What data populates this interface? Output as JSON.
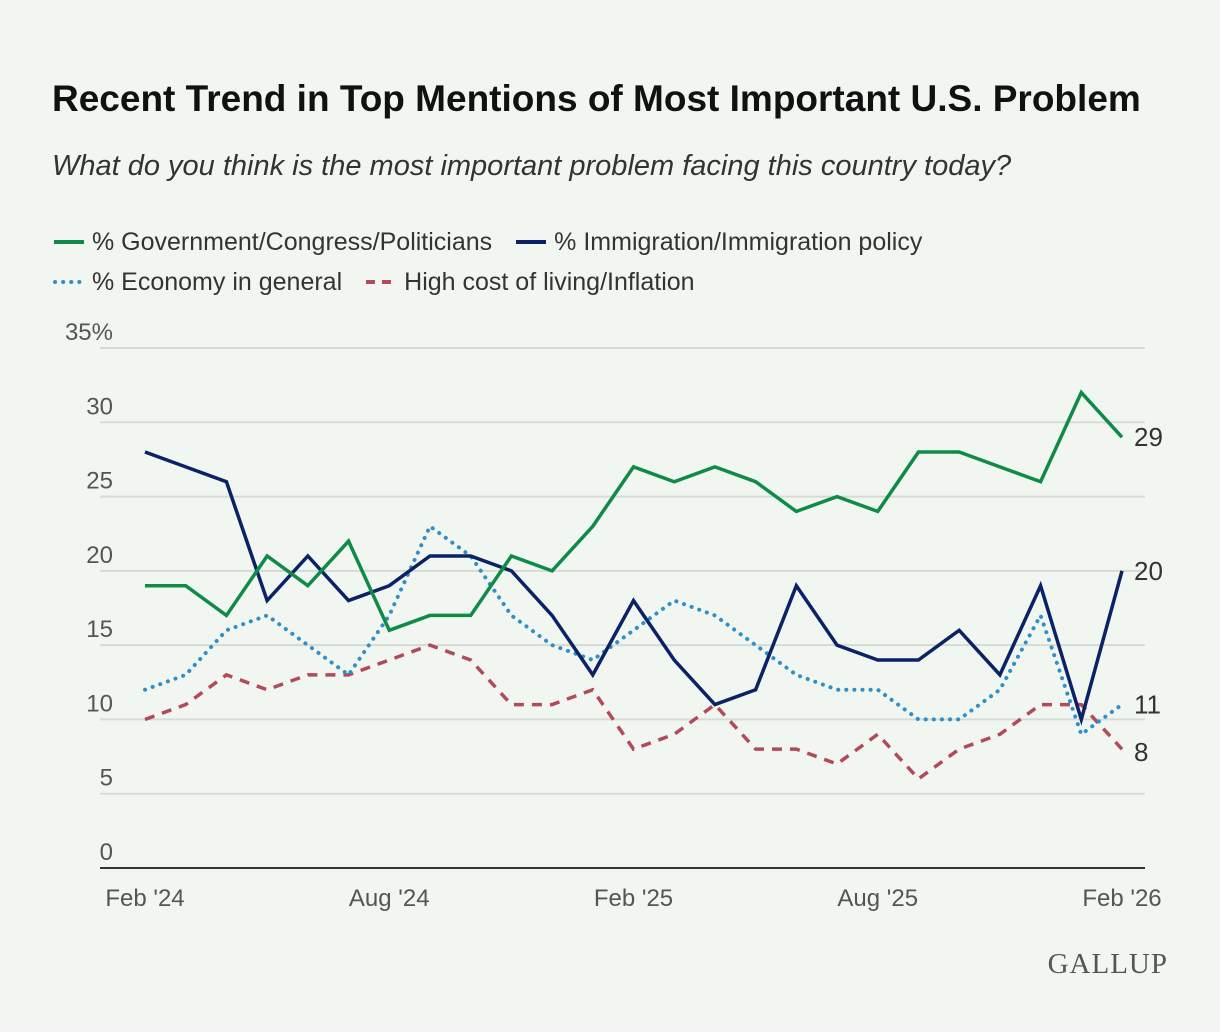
{
  "chart_data": {
    "type": "line",
    "title": "Recent Trend in Top Mentions of Most Important U.S. Problem",
    "subtitle": "What do you think is the most important problem facing this country today?",
    "xlabel": "",
    "ylabel": "",
    "ylim": [
      0,
      35
    ],
    "yticks": [
      0,
      5,
      10,
      15,
      20,
      25,
      30,
      35
    ],
    "ytick_labels": [
      "0",
      "5",
      "10",
      "15",
      "20",
      "25",
      "30",
      "35%"
    ],
    "x_tick_labels": [
      "Feb '24",
      "Aug '24",
      "Feb '25",
      "Aug '25",
      "Feb '26"
    ],
    "x_tick_indices": [
      0,
      6,
      12,
      18,
      24
    ],
    "grid": true,
    "legend_placement": "top",
    "series": [
      {
        "name": "% Government/Congress/Politicians",
        "color": "#0f8a47",
        "style": "solid",
        "end_label": "29",
        "values": [
          19,
          19,
          17,
          21,
          19,
          22,
          16,
          17,
          17,
          21,
          20,
          23,
          27,
          26,
          27,
          26,
          24,
          25,
          24,
          28,
          28,
          27,
          26,
          32,
          29
        ]
      },
      {
        "name": "% Immigration/Immigration policy",
        "color": "#0b2266",
        "style": "solid",
        "end_label": "20",
        "values": [
          28,
          27,
          26,
          18,
          21,
          18,
          19,
          21,
          21,
          20,
          17,
          13,
          18,
          14,
          11,
          12,
          19,
          15,
          14,
          14,
          16,
          13,
          19,
          10,
          20
        ]
      },
      {
        "name": "% Economy in general",
        "color": "#2f8fc9",
        "style": "dotted",
        "end_label": "11",
        "values": [
          12,
          13,
          16,
          17,
          15,
          13,
          17,
          23,
          21,
          17,
          15,
          14,
          16,
          18,
          17,
          15,
          13,
          12,
          12,
          10,
          10,
          12,
          17,
          9,
          11
        ]
      },
      {
        "name": "High cost of living/Inflation",
        "color": "#b34a5a",
        "style": "dashed",
        "end_label": "8",
        "values": [
          10,
          11,
          13,
          12,
          13,
          13,
          14,
          15,
          14,
          11,
          11,
          12,
          8,
          9,
          11,
          8,
          8,
          7,
          9,
          6,
          8,
          9,
          11,
          11,
          8
        ]
      }
    ]
  },
  "logo": "GALLUP"
}
